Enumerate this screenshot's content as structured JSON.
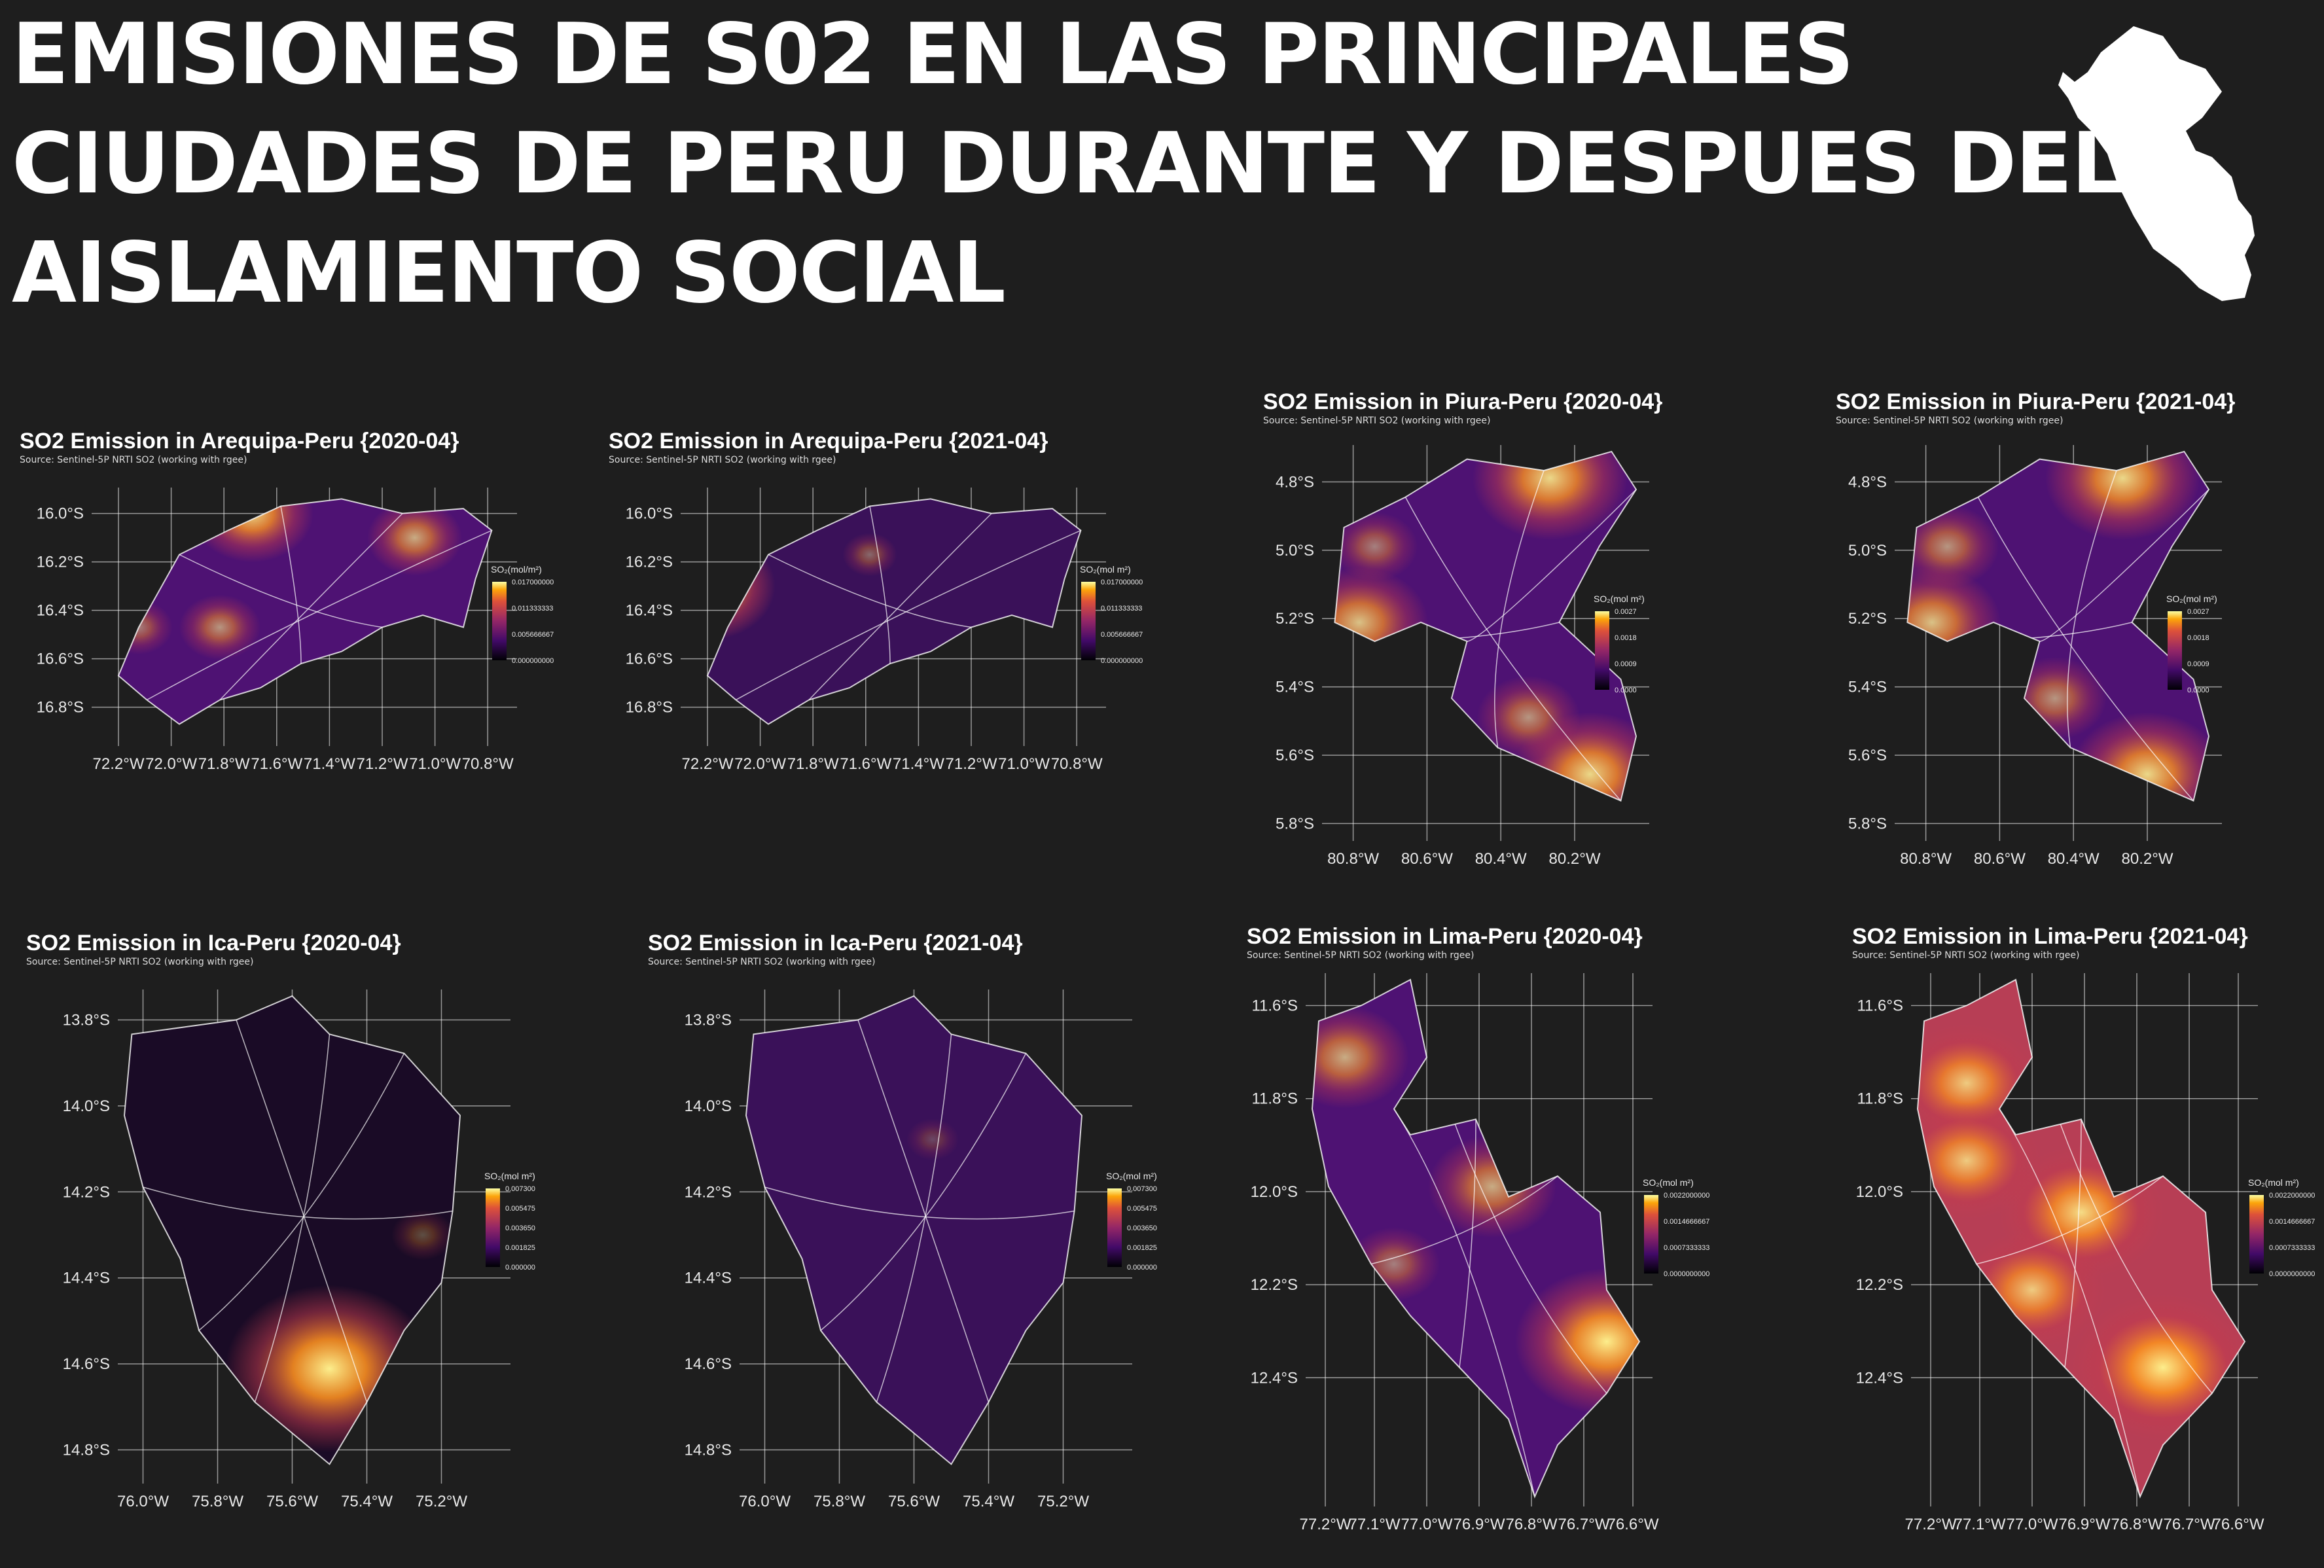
{
  "title_lines": [
    "EMISIONES DE S02 EN LAS PRINCIPALES",
    "CIUDADES DE PERU DURANTE Y DESPUES DEL",
    "AISLAMIENTO SOCIAL"
  ],
  "colors": {
    "background": "#1e1e1e",
    "title": "#ffffff",
    "grid": "#ffffff",
    "boundary": "#ffffff"
  },
  "icons": {
    "country": "peru-silhouette-icon"
  },
  "panels": [
    {
      "id": "arequipa-2020",
      "title": "SO2 Emission in Arequipa-Peru {2020-04}",
      "subtitle": "Source: Sentinel-5P NRTI SO2 (working with rgee)",
      "lat_ticks": [
        "16.0°S",
        "16.2°S",
        "16.4°S",
        "16.6°S",
        "16.8°S"
      ],
      "lon_ticks": [
        "72.2°W",
        "72.0°W",
        "71.8°W",
        "71.6°W",
        "71.4°W",
        "71.2°W",
        "71.0°W",
        "70.8°W"
      ],
      "legend_title": "SO₂(mol/m²)",
      "legend_labels": [
        "0.017000000",
        "0.011333333",
        "0.005666667",
        "0.000000000"
      ],
      "intensity": "medium"
    },
    {
      "id": "arequipa-2021",
      "title": "SO2 Emission in Arequipa-Peru {2021-04}",
      "subtitle": "Source: Sentinel-5P NRTI SO2 (working with rgee)",
      "lat_ticks": [
        "16.0°S",
        "16.2°S",
        "16.4°S",
        "16.6°S",
        "16.8°S"
      ],
      "lon_ticks": [
        "72.2°W",
        "72.0°W",
        "71.8°W",
        "71.6°W",
        "71.4°W",
        "71.2°W",
        "71.0°W",
        "70.8°W"
      ],
      "legend_title": "SO₂(mol  m²)",
      "legend_labels": [
        "0.017000000",
        "0.011333333",
        "0.005666667",
        "0.000000000"
      ],
      "intensity": "low"
    },
    {
      "id": "piura-2020",
      "title": "SO2 Emission in Piura-Peru {2020-04}",
      "subtitle": "Source: Sentinel-5P NRTI SO2 (working with rgee)",
      "lat_ticks": [
        "4.8°S",
        "5.0°S",
        "5.2°S",
        "5.4°S",
        "5.6°S",
        "5.8°S"
      ],
      "lon_ticks": [
        "80.8°W",
        "80.6°W",
        "80.4°W",
        "80.2°W"
      ],
      "legend_title": "SO₂(mol  m²)",
      "legend_labels": [
        "0.0027",
        "0.0018",
        "0.0009",
        "0.0000"
      ],
      "intensity": "medium"
    },
    {
      "id": "piura-2021",
      "title": "SO2 Emission in Piura-Peru {2021-04}",
      "subtitle": "Source: Sentinel-5P NRTI SO2 (working with rgee)",
      "lat_ticks": [
        "4.8°S",
        "5.0°S",
        "5.2°S",
        "5.4°S",
        "5.6°S",
        "5.8°S"
      ],
      "lon_ticks": [
        "80.8°W",
        "80.6°W",
        "80.4°W",
        "80.2°W"
      ],
      "legend_title": "SO₂(mol  m²)",
      "legend_labels": [
        "0.0027",
        "0.0018",
        "0.0009",
        "0.0000"
      ],
      "intensity": "medium"
    },
    {
      "id": "ica-2020",
      "title": "SO2 Emission in Ica-Peru {2020-04}",
      "subtitle": "Source: Sentinel-5P NRTI SO2 (working with rgee)",
      "lat_ticks": [
        "13.8°S",
        "14.0°S",
        "14.2°S",
        "14.4°S",
        "14.6°S",
        "14.8°S"
      ],
      "lon_ticks": [
        "76.0°W",
        "75.8°W",
        "75.6°W",
        "75.4°W",
        "75.2°W"
      ],
      "legend_title": "SO₂(mol  m²)",
      "legend_labels": [
        "0.007300",
        "0.005475",
        "0.003650",
        "0.001825",
        "0.000000"
      ],
      "intensity": "verylow"
    },
    {
      "id": "ica-2021",
      "title": "SO2 Emission in Ica-Peru {2021-04}",
      "subtitle": "Source: Sentinel-5P NRTI SO2 (working with rgee)",
      "lat_ticks": [
        "13.8°S",
        "14.0°S",
        "14.2°S",
        "14.4°S",
        "14.6°S",
        "14.8°S"
      ],
      "lon_ticks": [
        "76.0°W",
        "75.8°W",
        "75.6°W",
        "75.4°W",
        "75.2°W"
      ],
      "legend_title": "SO₂(mol  m²)",
      "legend_labels": [
        "0.007300",
        "0.005475",
        "0.003650",
        "0.001825",
        "0.000000"
      ],
      "intensity": "low"
    },
    {
      "id": "lima-2020",
      "title": "SO2 Emission in Lima-Peru {2020-04}",
      "subtitle": "Source: Sentinel-5P NRTI SO2 (working with rgee)",
      "lat_ticks": [
        "11.6°S",
        "11.8°S",
        "12.0°S",
        "12.2°S",
        "12.4°S"
      ],
      "lon_ticks": [
        "77.2°W",
        "77.1°W",
        "77.0°W",
        "76.9°W",
        "76.8°W",
        "76.7°W",
        "76.6°W"
      ],
      "legend_title": "SO₂(mol  m²)",
      "legend_labels": [
        "0.0022000000",
        "0.0014666667",
        "0.0007333333",
        "0.0000000000"
      ],
      "intensity": "medium"
    },
    {
      "id": "lima-2021",
      "title": "SO2 Emission in Lima-Peru {2021-04}",
      "subtitle": "Source: Sentinel-5P NRTI SO2 (working with rgee)",
      "lat_ticks": [
        "11.6°S",
        "11.8°S",
        "12.0°S",
        "12.2°S",
        "12.4°S"
      ],
      "lon_ticks": [
        "77.2°W",
        "77.1°W",
        "77.0°W",
        "76.9°W",
        "76.8°W",
        "76.7°W",
        "76.6°W"
      ],
      "legend_title": "SO₂(mol  m²)",
      "legend_labels": [
        "0.0022000000",
        "0.0014666667",
        "0.0007333333",
        "0.0000000000"
      ],
      "intensity": "high"
    }
  ]
}
